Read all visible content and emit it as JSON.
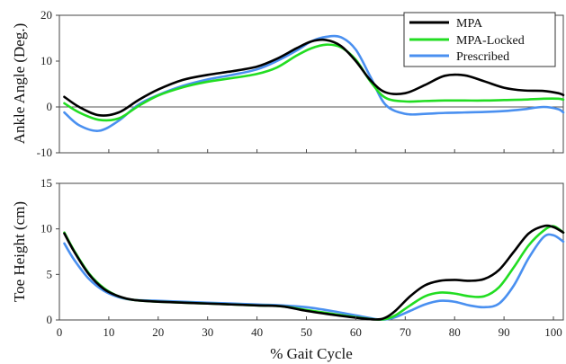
{
  "colors": {
    "MPA": "#000000",
    "MPA-Locked": "#22dd22",
    "Prescribed": "#4a90f0"
  },
  "legend": [
    "MPA",
    "MPA-Locked",
    "Prescribed"
  ],
  "xlabel": "% Gait Cycle",
  "chart_data": [
    {
      "type": "line",
      "ylabel": "Ankle Angle (Deg.)",
      "xlim": [
        0,
        102
      ],
      "ylim": [
        -10,
        20
      ],
      "yticks": [
        -10,
        0,
        10,
        20
      ],
      "xticks": [
        0,
        10,
        20,
        30,
        40,
        50,
        60,
        70,
        80,
        90,
        100
      ],
      "zero_line": true,
      "legend_position": "top-right",
      "series": [
        {
          "name": "MPA",
          "x": [
            1,
            4,
            8,
            12,
            16,
            20,
            25,
            30,
            35,
            40,
            44,
            48,
            51,
            54,
            57,
            60,
            63,
            66,
            70,
            74,
            78,
            82,
            86,
            90,
            94,
            98,
            101,
            102
          ],
          "y": [
            2.2,
            0,
            -1.8,
            -1.2,
            1.5,
            3.8,
            5.9,
            7.0,
            7.8,
            8.8,
            10.5,
            12.8,
            14.3,
            14.6,
            13.3,
            10.0,
            5.8,
            3.2,
            3.0,
            4.8,
            6.8,
            6.9,
            5.6,
            4.2,
            3.6,
            3.5,
            3.0,
            2.6
          ]
        },
        {
          "name": "MPA-Locked",
          "x": [
            1,
            4,
            8,
            12,
            16,
            20,
            25,
            30,
            35,
            40,
            44,
            48,
            51,
            54,
            57,
            60,
            63,
            66,
            70,
            74,
            78,
            82,
            86,
            90,
            94,
            98,
            101,
            102
          ],
          "y": [
            0.8,
            -1.2,
            -2.8,
            -2.5,
            0.2,
            2.5,
            4.3,
            5.5,
            6.3,
            7.2,
            8.6,
            11.2,
            12.8,
            13.6,
            13.0,
            10.3,
            5.5,
            2.0,
            1.2,
            1.3,
            1.4,
            1.4,
            1.4,
            1.5,
            1.6,
            1.8,
            1.8,
            1.6
          ]
        },
        {
          "name": "Prescribed",
          "x": [
            1,
            4,
            8,
            12,
            16,
            20,
            25,
            30,
            35,
            40,
            44,
            48,
            51,
            54,
            57,
            60,
            63,
            66,
            70,
            74,
            78,
            82,
            86,
            90,
            94,
            98,
            101,
            102
          ],
          "y": [
            -1.2,
            -4.0,
            -5.2,
            -3.0,
            0.5,
            2.6,
            4.6,
            6.0,
            7.0,
            8.2,
            10.0,
            12.3,
            14.3,
            15.3,
            15.2,
            12.5,
            6.5,
            0.5,
            -1.5,
            -1.5,
            -1.3,
            -1.2,
            -1.1,
            -0.9,
            -0.5,
            0.0,
            -0.5,
            -1.2
          ]
        }
      ]
    },
    {
      "type": "line",
      "ylabel": "Toe Height (cm)",
      "xlim": [
        0,
        102
      ],
      "ylim": [
        0,
        15
      ],
      "yticks": [
        0,
        5,
        10,
        15
      ],
      "xticks": [
        0,
        10,
        20,
        30,
        40,
        50,
        60,
        70,
        80,
        90,
        100
      ],
      "series": [
        {
          "name": "MPA",
          "x": [
            1,
            3,
            6,
            9,
            12,
            15,
            20,
            30,
            40,
            45,
            50,
            55,
            60,
            64,
            66,
            68,
            71,
            74,
            77,
            80,
            83,
            86,
            89,
            92,
            95,
            98,
            100,
            102
          ],
          "y": [
            9.5,
            7.5,
            5.0,
            3.4,
            2.6,
            2.2,
            2.0,
            1.8,
            1.6,
            1.5,
            1.0,
            0.6,
            0.25,
            0.05,
            0.25,
            1.0,
            2.6,
            3.8,
            4.3,
            4.4,
            4.3,
            4.5,
            5.5,
            7.5,
            9.5,
            10.3,
            10.2,
            9.6
          ]
        },
        {
          "name": "MPA-Locked",
          "x": [
            1,
            3,
            6,
            9,
            12,
            15,
            20,
            30,
            40,
            45,
            50,
            55,
            60,
            64,
            66,
            68,
            71,
            74,
            77,
            80,
            83,
            86,
            89,
            92,
            95,
            98,
            100,
            102
          ],
          "y": [
            9.6,
            7.6,
            5.1,
            3.5,
            2.6,
            2.2,
            2.0,
            1.8,
            1.6,
            1.5,
            1.1,
            0.7,
            0.3,
            0.05,
            0.1,
            0.5,
            1.6,
            2.6,
            3.0,
            2.9,
            2.6,
            2.6,
            3.6,
            5.8,
            8.2,
            9.8,
            10.3,
            9.6
          ]
        },
        {
          "name": "Prescribed",
          "x": [
            1,
            3,
            6,
            9,
            12,
            15,
            20,
            30,
            40,
            45,
            50,
            55,
            60,
            64,
            66,
            68,
            71,
            74,
            77,
            80,
            83,
            86,
            89,
            92,
            95,
            98,
            100,
            102
          ],
          "y": [
            8.4,
            6.6,
            4.5,
            3.2,
            2.5,
            2.2,
            2.1,
            1.9,
            1.7,
            1.6,
            1.4,
            1.0,
            0.5,
            0.1,
            0.05,
            0.3,
            1.0,
            1.7,
            2.1,
            2.0,
            1.6,
            1.4,
            1.8,
            3.8,
            6.8,
            9.1,
            9.3,
            8.6
          ]
        }
      ]
    }
  ]
}
